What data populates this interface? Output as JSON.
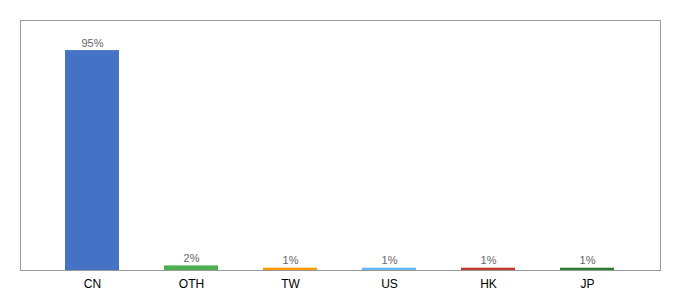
{
  "chart_data": {
    "type": "bar",
    "categories": [
      "CN",
      "OTH",
      "TW",
      "US",
      "HK",
      "JP"
    ],
    "values": [
      95,
      2,
      1,
      1,
      1,
      1
    ],
    "value_labels": [
      "95%",
      "2%",
      "1%",
      "1%",
      "1%",
      "1%"
    ],
    "colors": [
      "#4472C4",
      "#4CAF50",
      "#FF9800",
      "#64B5F6",
      "#C0392B",
      "#2E7D32"
    ],
    "ylim": [
      0,
      108
    ],
    "data_labels": true,
    "tick_labels": "x",
    "grid": false
  }
}
